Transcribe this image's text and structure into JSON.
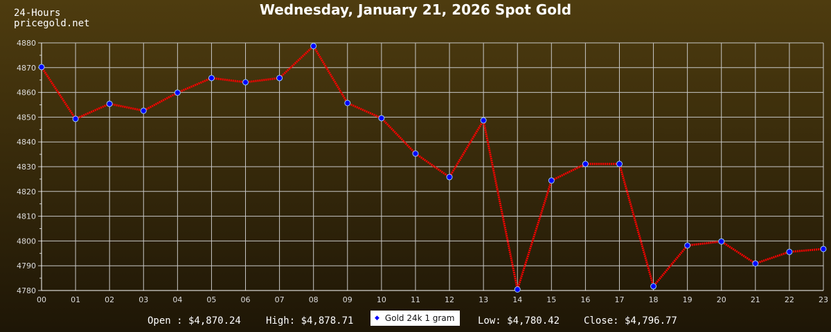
{
  "title": "Wednesday, January 21, 2026 Spot Gold",
  "subtitle_lines": [
    "24-Hours",
    "pricegold.net"
  ],
  "stats": {
    "open": "Open : $4,870.24",
    "high": "High: $4,878.71",
    "low": "Low: $4,780.42",
    "close": "Close: $4,796.77"
  },
  "legend": {
    "label": "Gold 24k 1 gram"
  },
  "colors": {
    "line": "#ff0000",
    "marker": "#0000ff",
    "grid": "#c8c8c8"
  },
  "chart_data": {
    "type": "line",
    "title": "Wednesday, January 21, 2026 Spot Gold",
    "categories": [
      "00",
      "01",
      "02",
      "03",
      "04",
      "05",
      "06",
      "07",
      "08",
      "09",
      "10",
      "11",
      "12",
      "13",
      "14",
      "15",
      "16",
      "17",
      "18",
      "19",
      "20",
      "21",
      "22",
      "23"
    ],
    "series": [
      {
        "name": "Gold 24k 1 gram",
        "values": [
          4870.24,
          4849.3,
          4855.4,
          4852.6,
          4859.9,
          4865.8,
          4864.1,
          4865.8,
          4878.71,
          4855.7,
          4849.6,
          4835.3,
          4825.8,
          4848.7,
          4780.42,
          4824.4,
          4831.1,
          4831.1,
          4781.7,
          4798.2,
          4799.8,
          4790.9,
          4795.6,
          4796.77
        ]
      }
    ],
    "yticks": [
      4780,
      4790,
      4800,
      4810,
      4820,
      4830,
      4840,
      4850,
      4860,
      4870,
      4880
    ],
    "ylim": [
      4780,
      4880
    ],
    "grid": true,
    "legend_position": "bottom-center"
  }
}
